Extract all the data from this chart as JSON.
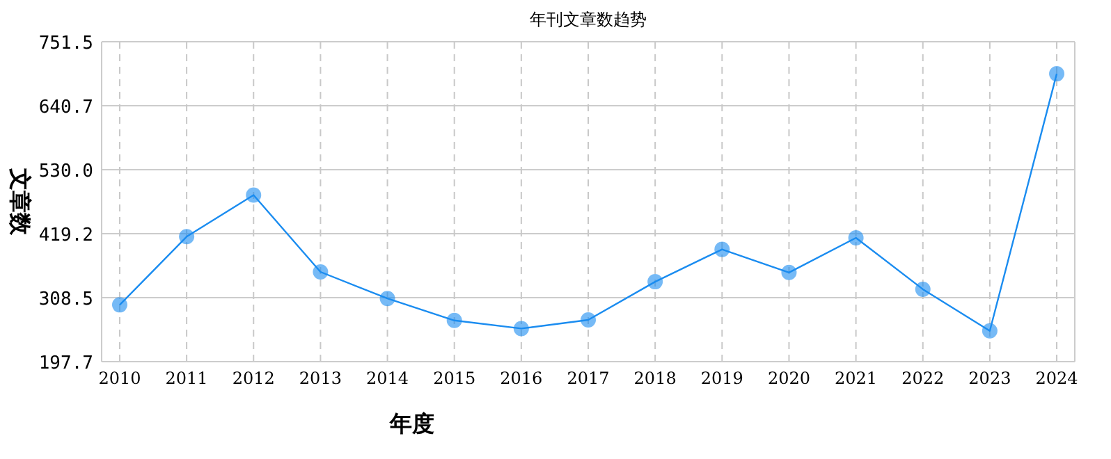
{
  "chart_data": {
    "type": "line",
    "title": "年刊文章数趋势",
    "xlabel": "年度",
    "ylabel": "文章数",
    "categories": [
      "2010",
      "2011",
      "2012",
      "2013",
      "2014",
      "2015",
      "2016",
      "2017",
      "2018",
      "2019",
      "2020",
      "2021",
      "2022",
      "2023",
      "2024"
    ],
    "series": [
      {
        "color": "#1a8cf0",
        "values": [
          296,
          414,
          486,
          353,
          307,
          269,
          255,
          270,
          336,
          392,
          352,
          412,
          323,
          251,
          696
        ]
      }
    ],
    "ylim": [
      197.7,
      751.5
    ],
    "yticks": [
      {
        "value": 197.7,
        "label": "197.7"
      },
      {
        "value": 308.5,
        "label": "308.5"
      },
      {
        "value": 419.2,
        "label": "419.2"
      },
      {
        "value": 530.0,
        "label": "530.0"
      },
      {
        "value": 640.7,
        "label": "640.7"
      },
      {
        "value": 751.5,
        "label": "751.5"
      }
    ],
    "grid": true,
    "marker": "circle",
    "line_style": "solid"
  }
}
